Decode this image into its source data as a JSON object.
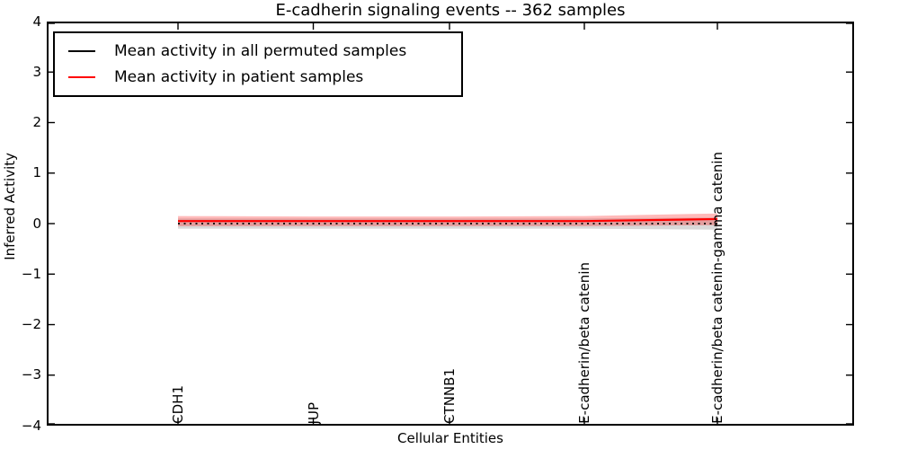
{
  "title": "E-cadherin signaling events -- 362 samples",
  "axes": {
    "ylabel": "Inferred Activity",
    "xlabel": "Cellular Entities",
    "yticks": [
      "4",
      "3",
      "2",
      "1",
      "0",
      "−1",
      "−2",
      "−3",
      "−4"
    ]
  },
  "legend": {
    "items": [
      {
        "label": "Mean activity in all permuted samples",
        "color": "#000000"
      },
      {
        "label": "Mean activity in patient samples",
        "color": "#ff0000"
      }
    ]
  },
  "chart_data": {
    "type": "line",
    "title": "E-cadherin signaling events -- 362 samples",
    "xlabel": "Cellular Entities",
    "ylabel": "Inferred Activity",
    "ylim": [
      -4,
      4
    ],
    "grid": false,
    "legend_position": "upper left",
    "categories": [
      "CDH1",
      "JUP",
      "CTNNB1",
      "E-cadherin/beta catenin",
      "E-cadherin/beta catenin-gamma catenin"
    ],
    "series": [
      {
        "name": "Mean activity in all permuted samples",
        "color": "#000000",
        "style": "dotted",
        "values": [
          0.0,
          0.0,
          0.0,
          0.0,
          0.0
        ],
        "band_upper": [
          0.1,
          0.1,
          0.1,
          0.1,
          0.12
        ],
        "band_lower": [
          -0.1,
          -0.1,
          -0.1,
          -0.1,
          -0.12
        ],
        "band_color": "rgba(102,102,102,0.25)"
      },
      {
        "name": "Mean activity in patient samples",
        "color": "#ff0000",
        "style": "solid",
        "values": [
          0.05,
          0.05,
          0.05,
          0.05,
          0.09
        ],
        "band_upper": [
          0.15,
          0.14,
          0.14,
          0.15,
          0.2
        ],
        "band_lower": [
          -0.05,
          -0.05,
          -0.05,
          -0.05,
          -0.03
        ],
        "band_color": "rgba(255,0,0,0.27)"
      }
    ]
  }
}
